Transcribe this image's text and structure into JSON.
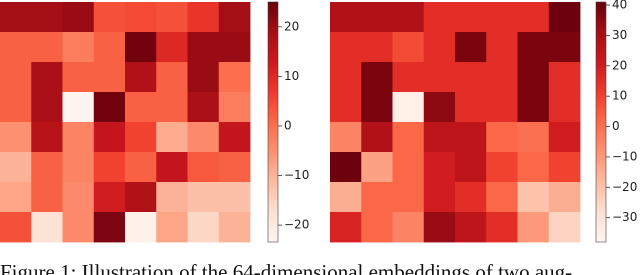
{
  "chart_data": [
    {
      "type": "heatmap",
      "values": [
        [
          19,
          19,
          20,
          4,
          5,
          4,
          8,
          19
        ],
        [
          2,
          2,
          -2,
          2,
          24,
          10,
          20,
          20
        ],
        [
          2,
          18,
          2,
          2,
          17,
          2,
          20,
          0
        ],
        [
          2,
          18,
          -23,
          24,
          2,
          2,
          18,
          -2
        ],
        [
          -5,
          16,
          -3,
          14,
          6,
          -9,
          -4,
          14
        ],
        [
          -10,
          2,
          -3,
          6,
          2,
          14,
          3,
          2
        ],
        [
          -8,
          2,
          -4,
          12,
          17,
          -10,
          -12,
          -12
        ],
        [
          4,
          -18,
          -4,
          23,
          -22,
          -8,
          -16,
          -10
        ]
      ],
      "ylim": [
        -23.4,
        25
      ],
      "yticks": [
        20,
        10,
        0,
        {
          "value": -10,
          "label": "−10"
        },
        {
          "value": -20,
          "label": "−20"
        }
      ],
      "colormap": [
        "#fff5f0",
        "#fee0d2",
        "#fcbba1",
        "#fc9272",
        "#fb6a4a",
        "#ef3b2c",
        "#cb181d",
        "#a50f15",
        "#67000d"
      ]
    },
    {
      "type": "heatmap",
      "values": [
        [
          28,
          28,
          28,
          15,
          15,
          15,
          15,
          40
        ],
        [
          15,
          15,
          8,
          15,
          38,
          15,
          38,
          38
        ],
        [
          15,
          38,
          15,
          15,
          15,
          15,
          38,
          15
        ],
        [
          15,
          38,
          -35,
          35,
          15,
          15,
          38,
          15
        ],
        [
          -5,
          28,
          2,
          25,
          25,
          2,
          0,
          20
        ],
        [
          40,
          -12,
          2,
          20,
          25,
          10,
          2,
          10
        ],
        [
          -15,
          2,
          2,
          20,
          15,
          2,
          -20,
          -15
        ],
        [
          18,
          2,
          -5,
          33,
          25,
          15,
          -10,
          -25
        ]
      ],
      "ylim": [
        -38,
        41
      ],
      "yticks": [
        40,
        30,
        20,
        10,
        0,
        {
          "value": -10,
          "label": "−10"
        },
        {
          "value": -20,
          "label": "−20"
        },
        {
          "value": -30,
          "label": "−30"
        }
      ],
      "colormap": [
        "#fff5f0",
        "#fee0d2",
        "#fcbba1",
        "#fc9272",
        "#fb6a4a",
        "#ef3b2c",
        "#cb181d",
        "#a50f15",
        "#67000d"
      ]
    }
  ],
  "caption": "Figure 1: Illustration of the 64-dimensional embeddings of two aug-"
}
